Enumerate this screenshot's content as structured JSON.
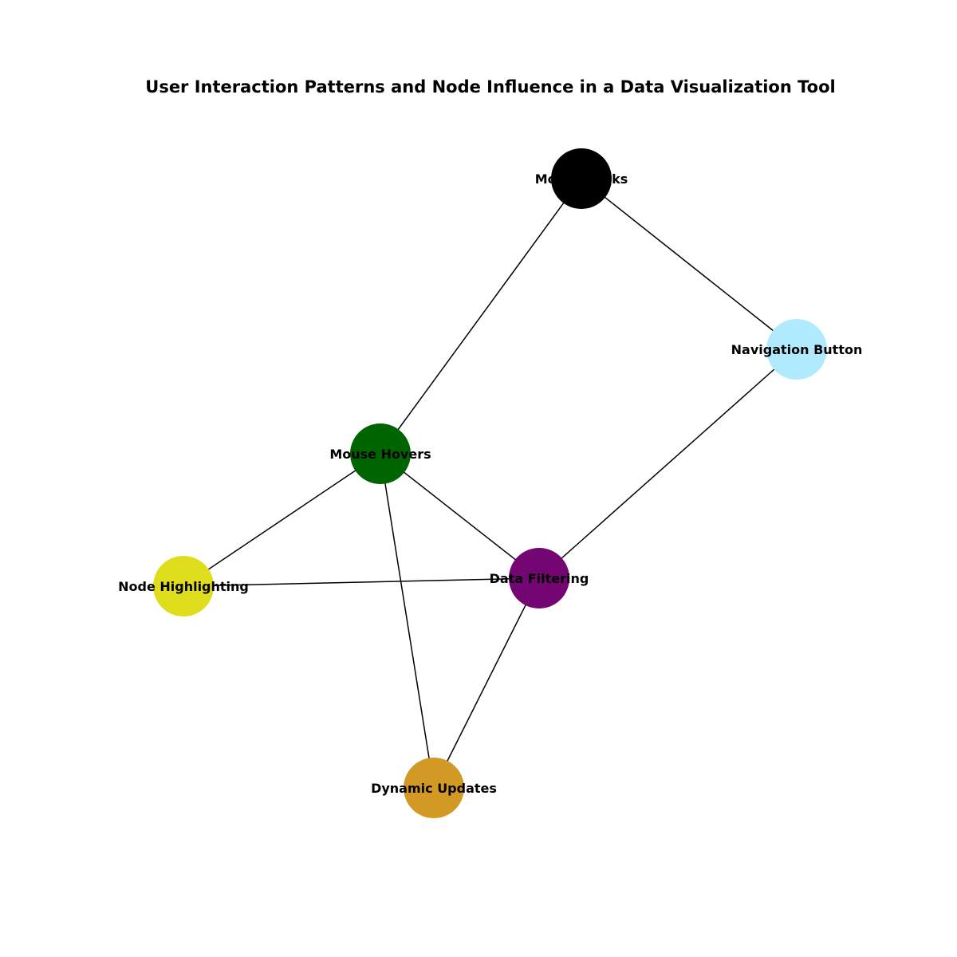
{
  "title": "User Interaction Patterns and Node Influence in a Data Visualization Tool",
  "nodes": [
    {
      "id": "mouse_clicks",
      "label": "Mouse Clicks",
      "color": "#000000"
    },
    {
      "id": "navigation_button",
      "label": "Navigation Button",
      "color": "#b0eaff"
    },
    {
      "id": "mouse_hovers",
      "label": "Mouse Hovers",
      "color": "#006400"
    },
    {
      "id": "node_highlighting",
      "label": "Node Highlighting",
      "color": "#dede1c"
    },
    {
      "id": "data_filtering",
      "label": "Data Filtering",
      "color": "#730673"
    },
    {
      "id": "dynamic_updates",
      "label": "Dynamic Updates",
      "color": "#d29a24"
    }
  ],
  "edges": [
    {
      "source": "mouse_clicks",
      "target": "navigation_button"
    },
    {
      "source": "mouse_clicks",
      "target": "mouse_hovers"
    },
    {
      "source": "navigation_button",
      "target": "data_filtering"
    },
    {
      "source": "mouse_hovers",
      "target": "node_highlighting"
    },
    {
      "source": "mouse_hovers",
      "target": "data_filtering"
    },
    {
      "source": "mouse_hovers",
      "target": "dynamic_updates"
    },
    {
      "source": "node_highlighting",
      "target": "data_filtering"
    },
    {
      "source": "data_filtering",
      "target": "dynamic_updates"
    }
  ]
}
